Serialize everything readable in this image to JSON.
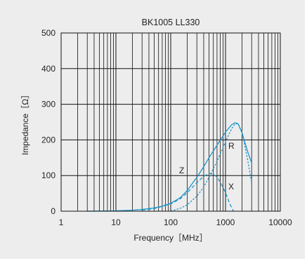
{
  "chart_data": {
    "type": "line",
    "title": "BK1005  LL330",
    "xlabel": "Frequency［MHz］",
    "ylabel": "Impedance［Ω］",
    "x_scale": "log",
    "xlim": [
      1,
      10000
    ],
    "ylim": [
      0,
      500
    ],
    "x_ticks": [
      1,
      10,
      100,
      1000,
      10000
    ],
    "x_tick_labels": [
      "1",
      "10",
      "100",
      "1000",
      "10000"
    ],
    "y_ticks": [
      0,
      100,
      200,
      300,
      400,
      500
    ],
    "y_tick_labels": [
      "0",
      "100",
      "200",
      "300",
      "400",
      "500"
    ],
    "grid": true,
    "line_color": "#1e96c8",
    "series": [
      {
        "name": "Z",
        "style": "solid",
        "x": [
          3,
          5,
          10,
          20,
          30,
          50,
          70,
          100,
          150,
          200,
          300,
          400,
          500,
          700,
          1000,
          1300,
          1500,
          1700,
          2000,
          2500,
          3000
        ],
        "y": [
          0,
          0.3,
          1,
          3,
          5,
          9,
          14,
          22,
          38,
          58,
          95,
          125,
          150,
          185,
          222,
          243,
          248,
          245,
          220,
          170,
          135
        ]
      },
      {
        "name": "R",
        "style": "dotted",
        "x": [
          100,
          150,
          200,
          300,
          400,
          500,
          700,
          1000,
          1300,
          1500,
          1700,
          2000,
          2500,
          3000
        ],
        "y": [
          0,
          8,
          18,
          42,
          68,
          95,
          140,
          195,
          232,
          245,
          245,
          220,
          150,
          80
        ]
      },
      {
        "name": "X",
        "style": "dashed",
        "x": [
          30,
          50,
          100,
          150,
          200,
          300,
          400,
          500,
          600,
          700,
          800,
          1000,
          1200,
          1400
        ],
        "y": [
          3,
          7,
          20,
          35,
          52,
          80,
          98,
          106,
          104,
          96,
          82,
          52,
          20,
          0
        ]
      }
    ],
    "curve_labels": [
      "Z",
      "R",
      "X"
    ]
  }
}
